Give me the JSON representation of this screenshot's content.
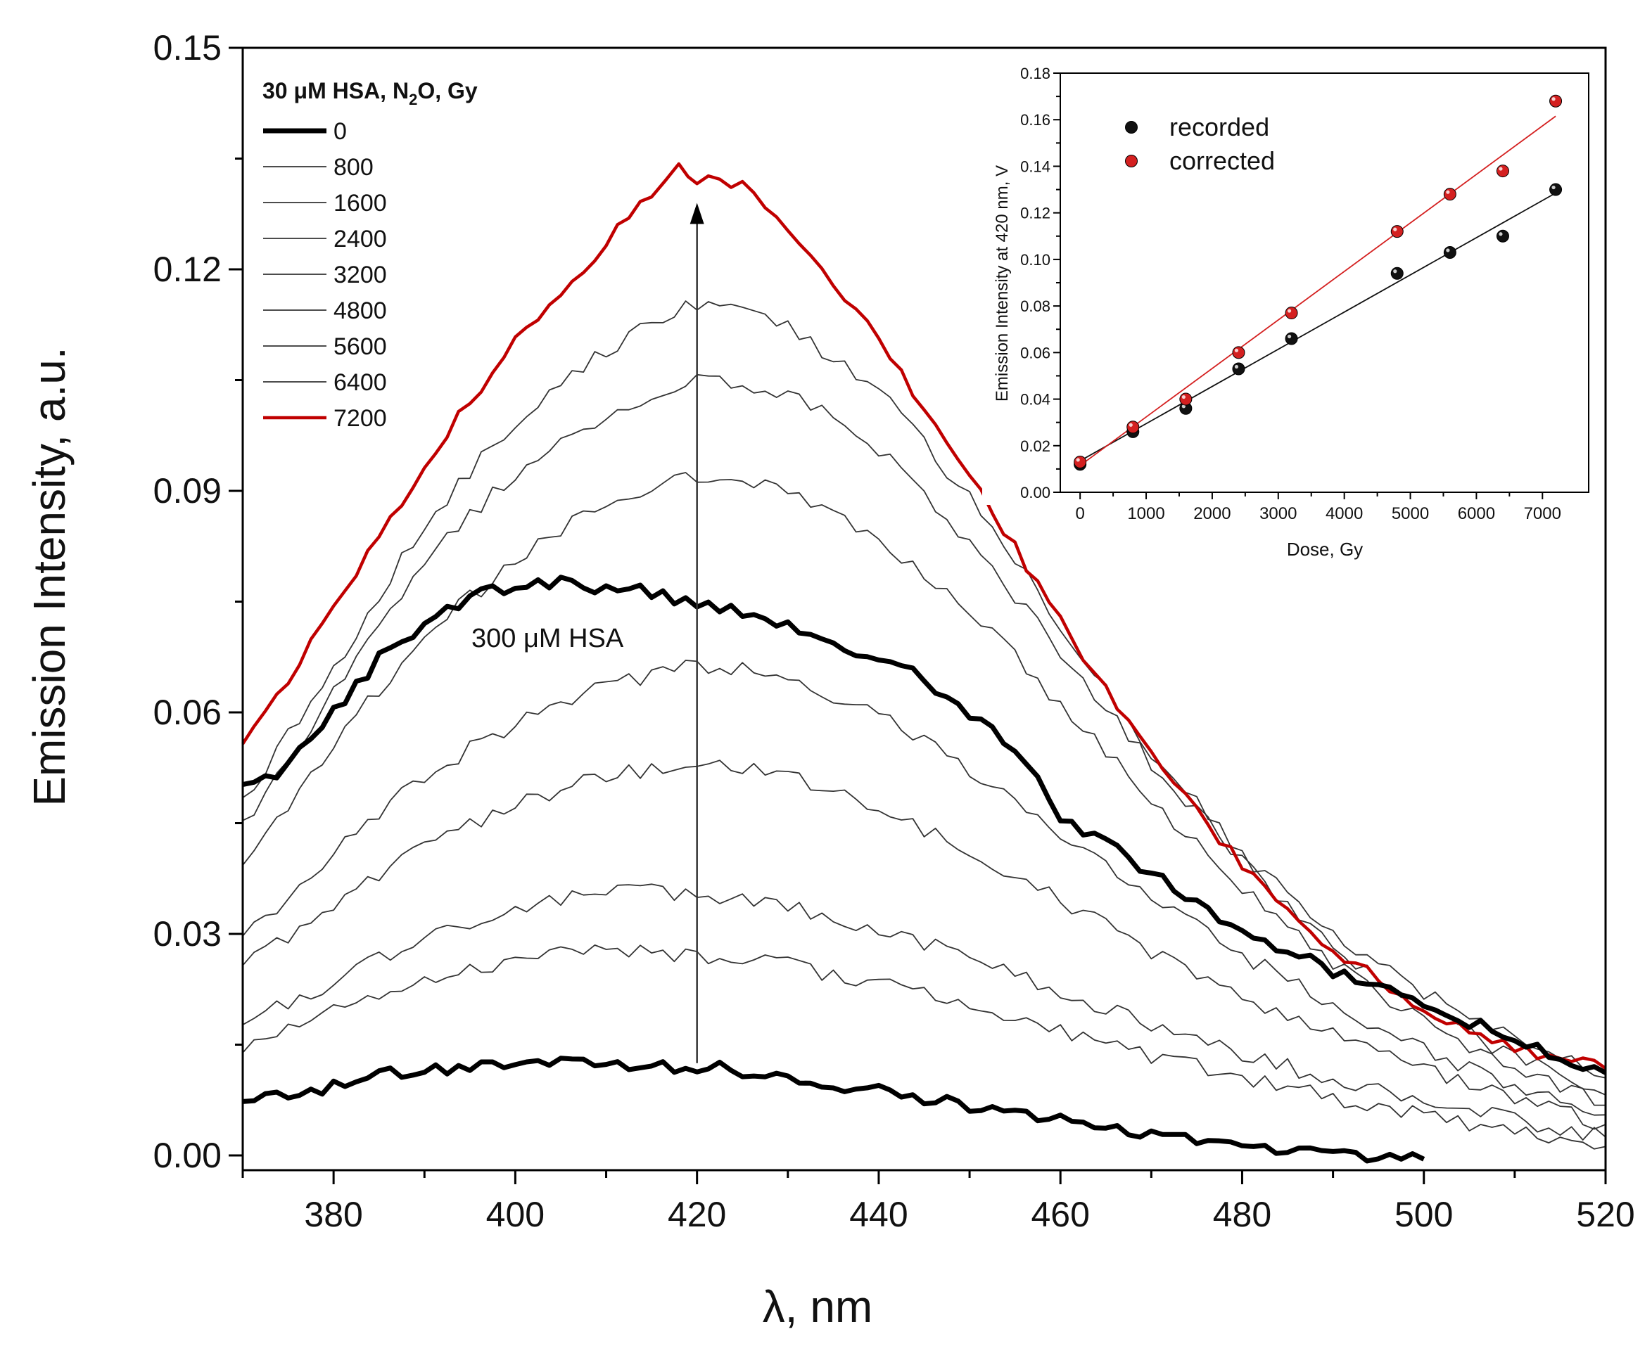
{
  "chart_data": [
    {
      "type": "line",
      "xlabel": "λ, nm",
      "ylabel": "Emission Intensity, a.u.",
      "xlim": [
        370,
        520
      ],
      "ylim": [
        -0.002,
        0.15
      ],
      "x_ticks": [
        380,
        400,
        420,
        440,
        460,
        480,
        500,
        520
      ],
      "y_ticks": [
        0.0,
        0.03,
        0.06,
        0.09,
        0.12,
        0.15
      ],
      "y_tick_labels": [
        "0.00",
        "0.03",
        "0.06",
        "0.09",
        "0.12",
        "0.15"
      ],
      "legend_title_parts": [
        "30 μM HSA, N",
        "2",
        "O, Gy"
      ],
      "annotation": "300 μM HSA",
      "arrow": {
        "x": 420,
        "y_from": 0.0125,
        "y_to": 0.129
      },
      "series": [
        {
          "name": "0",
          "color": "#000000",
          "width": 7,
          "in_legend": true,
          "points": [
            [
              370,
              0.0075
            ],
            [
              375,
              0.0082
            ],
            [
              380,
              0.0095
            ],
            [
              385,
              0.0108
            ],
            [
              390,
              0.0116
            ],
            [
              395,
              0.0122
            ],
            [
              400,
              0.0125
            ],
            [
              405,
              0.0127
            ],
            [
              410,
              0.0125
            ],
            [
              415,
              0.0122
            ],
            [
              420,
              0.012
            ],
            [
              425,
              0.0115
            ],
            [
              430,
              0.0108
            ],
            [
              435,
              0.0098
            ],
            [
              440,
              0.0087
            ],
            [
              445,
              0.0078
            ],
            [
              450,
              0.0067
            ],
            [
              455,
              0.0056
            ],
            [
              460,
              0.0046
            ],
            [
              465,
              0.0036
            ],
            [
              470,
              0.0027
            ],
            [
              475,
              0.0018
            ],
            [
              480,
              0.0012
            ],
            [
              485,
              0.0006
            ],
            [
              490,
              0.0001
            ],
            [
              495,
              -0.0003
            ],
            [
              500,
              -0.0005
            ]
          ]
        },
        {
          "name": "800",
          "color": "#333333",
          "width": 1.8,
          "in_legend": true,
          "points": [
            [
              370,
              0.015
            ],
            [
              380,
              0.0195
            ],
            [
              390,
              0.024
            ],
            [
              400,
              0.0265
            ],
            [
              410,
              0.0278
            ],
            [
              420,
              0.0272
            ],
            [
              430,
              0.0258
            ],
            [
              440,
              0.0232
            ],
            [
              450,
              0.0202
            ],
            [
              460,
              0.0168
            ],
            [
              470,
              0.0135
            ],
            [
              480,
              0.0105
            ],
            [
              490,
              0.0078
            ],
            [
              500,
              0.0055
            ],
            [
              510,
              0.0032
            ],
            [
              520,
              0.0012
            ]
          ]
        },
        {
          "name": "1600",
          "color": "#333333",
          "width": 1.8,
          "in_legend": true,
          "points": [
            [
              370,
              0.018
            ],
            [
              380,
              0.0235
            ],
            [
              390,
              0.0295
            ],
            [
              400,
              0.0335
            ],
            [
              410,
              0.0358
            ],
            [
              420,
              0.0355
            ],
            [
              430,
              0.0338
            ],
            [
              440,
              0.0308
            ],
            [
              450,
              0.0268
            ],
            [
              460,
              0.0222
            ],
            [
              470,
              0.0178
            ],
            [
              480,
              0.0138
            ],
            [
              490,
              0.0102
            ],
            [
              500,
              0.0075
            ],
            [
              510,
              0.0048
            ],
            [
              520,
              0.0025
            ]
          ]
        },
        {
          "name": "2400",
          "color": "#333333",
          "width": 1.8,
          "in_legend": true,
          "points": [
            [
              370,
              0.026
            ],
            [
              380,
              0.0335
            ],
            [
              390,
              0.042
            ],
            [
              400,
              0.0475
            ],
            [
              410,
              0.0515
            ],
            [
              420,
              0.053
            ],
            [
              430,
              0.0515
            ],
            [
              440,
              0.0472
            ],
            [
              450,
              0.0412
            ],
            [
              460,
              0.0345
            ],
            [
              470,
              0.0275
            ],
            [
              480,
              0.0212
            ],
            [
              490,
              0.0162
            ],
            [
              500,
              0.0118
            ],
            [
              510,
              0.0078
            ],
            [
              520,
              0.0042
            ]
          ]
        },
        {
          "name": "3200",
          "color": "#333333",
          "width": 1.8,
          "in_legend": true,
          "points": [
            [
              370,
              0.029
            ],
            [
              380,
              0.041
            ],
            [
              390,
              0.0515
            ],
            [
              400,
              0.0585
            ],
            [
              410,
              0.0635
            ],
            [
              420,
              0.0665
            ],
            [
              430,
              0.0648
            ],
            [
              440,
              0.0598
            ],
            [
              450,
              0.0522
            ],
            [
              460,
              0.0438
            ],
            [
              470,
              0.0352
            ],
            [
              480,
              0.0272
            ],
            [
              490,
              0.0202
            ],
            [
              500,
              0.0142
            ],
            [
              510,
              0.0095
            ],
            [
              520,
              0.0055
            ]
          ]
        },
        {
          "name": "4800",
          "color": "#333333",
          "width": 1.8,
          "in_legend": true,
          "points": [
            [
              370,
              0.04
            ],
            [
              380,
              0.0555
            ],
            [
              390,
              0.0705
            ],
            [
              400,
              0.0805
            ],
            [
              410,
              0.0885
            ],
            [
              420,
              0.092
            ],
            [
              430,
              0.0905
            ],
            [
              440,
              0.0838
            ],
            [
              450,
              0.0738
            ],
            [
              460,
              0.0612
            ],
            [
              470,
              0.0482
            ],
            [
              480,
              0.0362
            ],
            [
              490,
              0.0262
            ],
            [
              500,
              0.0182
            ],
            [
              510,
              0.0118
            ],
            [
              520,
              0.0068
            ]
          ]
        },
        {
          "name": "5600",
          "color": "#333333",
          "width": 1.8,
          "in_legend": true,
          "points": [
            [
              370,
              0.0445
            ],
            [
              380,
              0.0625
            ],
            [
              390,
              0.0805
            ],
            [
              400,
              0.0925
            ],
            [
              410,
              0.1005
            ],
            [
              420,
              0.1052
            ],
            [
              430,
              0.1035
            ],
            [
              440,
              0.0955
            ],
            [
              450,
              0.0832
            ],
            [
              460,
              0.0682
            ],
            [
              470,
              0.0532
            ],
            [
              480,
              0.0398
            ],
            [
              490,
              0.0285
            ],
            [
              500,
              0.0198
            ],
            [
              510,
              0.0132
            ],
            [
              520,
              0.0082
            ]
          ]
        },
        {
          "name": "6400",
          "color": "#333333",
          "width": 1.8,
          "in_legend": true,
          "points": [
            [
              370,
              0.0475
            ],
            [
              380,
              0.066
            ],
            [
              390,
              0.0855
            ],
            [
              400,
              0.0995
            ],
            [
              410,
              0.1092
            ],
            [
              420,
              0.1155
            ],
            [
              430,
              0.1125
            ],
            [
              440,
              0.1035
            ],
            [
              450,
              0.0892
            ],
            [
              460,
              0.0718
            ],
            [
              470,
              0.0548
            ],
            [
              480,
              0.0408
            ],
            [
              490,
              0.0298
            ],
            [
              500,
              0.0222
            ],
            [
              510,
              0.0158
            ],
            [
              520,
              0.0105
            ]
          ]
        },
        {
          "name": "7200",
          "color": "#c00000",
          "width": 4.5,
          "in_legend": true,
          "points": [
            [
              370,
              0.0555
            ],
            [
              380,
              0.074
            ],
            [
              390,
              0.0935
            ],
            [
              400,
              0.1105
            ],
            [
              410,
              0.1235
            ],
            [
              415,
              0.1305
            ],
            [
              418,
              0.1335
            ],
            [
              420,
              0.132
            ],
            [
              425,
              0.1315
            ],
            [
              430,
              0.125
            ],
            [
              440,
              0.1105
            ],
            [
              450,
              0.0925
            ],
            [
              460,
              0.0725
            ],
            [
              470,
              0.0538
            ],
            [
              480,
              0.0392
            ],
            [
              490,
              0.0278
            ],
            [
              500,
              0.02
            ],
            [
              510,
              0.0145
            ],
            [
              520,
              0.0118
            ]
          ]
        },
        {
          "name": "300 μM HSA",
          "color": "#000000",
          "width": 7,
          "in_legend": false,
          "points": [
            [
              370,
              0.0495
            ],
            [
              375,
              0.0528
            ],
            [
              380,
              0.06
            ],
            [
              385,
              0.0672
            ],
            [
              390,
              0.0722
            ],
            [
              395,
              0.0758
            ],
            [
              400,
              0.0772
            ],
            [
              405,
              0.0778
            ],
            [
              410,
              0.0768
            ],
            [
              415,
              0.0762
            ],
            [
              420,
              0.0742
            ],
            [
              425,
              0.0738
            ],
            [
              430,
              0.0718
            ],
            [
              435,
              0.0695
            ],
            [
              440,
              0.0672
            ],
            [
              445,
              0.0645
            ],
            [
              450,
              0.0592
            ],
            [
              455,
              0.0555
            ],
            [
              460,
              0.0462
            ],
            [
              465,
              0.0422
            ],
            [
              470,
              0.0382
            ],
            [
              475,
              0.0342
            ],
            [
              480,
              0.0305
            ],
            [
              485,
              0.0278
            ],
            [
              490,
              0.0248
            ],
            [
              495,
              0.0225
            ],
            [
              500,
              0.0205
            ],
            [
              505,
              0.0182
            ],
            [
              510,
              0.0155
            ],
            [
              515,
              0.0135
            ],
            [
              520,
              0.0112
            ]
          ]
        }
      ]
    },
    {
      "type": "scatter",
      "xlabel": "Dose, Gy",
      "ylabel": "Emission Intensity at 420 nm, V",
      "xlim": [
        -300,
        7700
      ],
      "ylim": [
        0.0,
        0.18
      ],
      "x_ticks": [
        0,
        1000,
        2000,
        3000,
        4000,
        5000,
        6000,
        7000
      ],
      "y_ticks": [
        0.0,
        0.02,
        0.04,
        0.06,
        0.08,
        0.1,
        0.12,
        0.14,
        0.16,
        0.18
      ],
      "y_tick_labels": [
        "0.00",
        "0.02",
        "0.04",
        "0.06",
        "0.08",
        "0.10",
        "0.12",
        "0.14",
        "0.16",
        "0.18"
      ],
      "legend": "top-left",
      "series": [
        {
          "name": "recorded",
          "color": "#111111",
          "x": [
            0,
            800,
            1600,
            2400,
            3200,
            4800,
            5600,
            6400,
            7200
          ],
          "y": [
            0.012,
            0.026,
            0.036,
            0.053,
            0.066,
            0.094,
            0.103,
            0.11,
            0.13
          ],
          "fit": {
            "x0": 0,
            "y0": 0.0135,
            "x1": 7200,
            "y1": 0.1285
          }
        },
        {
          "name": "corrected",
          "color": "#d42020",
          "x": [
            0,
            800,
            1600,
            2400,
            3200,
            4800,
            5600,
            6400,
            7200
          ],
          "y": [
            0.013,
            0.028,
            0.04,
            0.06,
            0.077,
            0.112,
            0.128,
            0.138,
            0.168
          ],
          "fit": {
            "x0": 0,
            "y0": 0.0115,
            "x1": 7200,
            "y1": 0.1615
          }
        }
      ]
    }
  ]
}
